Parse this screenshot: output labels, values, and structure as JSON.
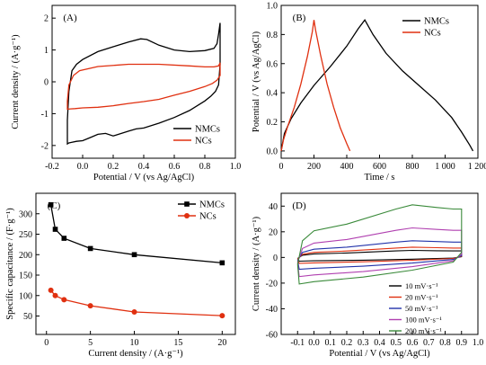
{
  "chart_data": [
    {
      "panel": "(A)",
      "type": "line",
      "xlabel": "Potential / V (vs Ag/AgCl)",
      "ylabel": "Current density / (A·g⁻¹)",
      "xlim": [
        -0.2,
        1.0
      ],
      "ylim": [
        -2.4,
        2.4
      ],
      "xticks": [
        "-0.2",
        "0.0",
        "0.2",
        "0.4",
        "0.6",
        "0.8",
        "1.0"
      ],
      "yticks": [
        "-2",
        "-1",
        "0",
        "1",
        "2"
      ],
      "legend_position": "bottom-right",
      "series": [
        {
          "name": "NMCs",
          "color": "#000000",
          "x": [
            -0.1,
            -0.09,
            -0.07,
            -0.04,
            0.0,
            0.1,
            0.2,
            0.3,
            0.38,
            0.42,
            0.5,
            0.6,
            0.7,
            0.8,
            0.86,
            0.88,
            0.89,
            0.9,
            0.9,
            0.89,
            0.87,
            0.84,
            0.8,
            0.7,
            0.6,
            0.5,
            0.4,
            0.35,
            0.3,
            0.2,
            0.15,
            0.1,
            0.05,
            0.0,
            -0.04,
            -0.07,
            -0.09,
            -0.1,
            -0.1,
            -0.1
          ],
          "y": [
            -1.2,
            -0.3,
            0.35,
            0.55,
            0.7,
            0.95,
            1.1,
            1.25,
            1.35,
            1.33,
            1.15,
            1.0,
            0.95,
            0.98,
            1.05,
            1.2,
            1.5,
            1.85,
            0.55,
            -0.1,
            -0.3,
            -0.45,
            -0.6,
            -0.9,
            -1.12,
            -1.3,
            -1.45,
            -1.48,
            -1.55,
            -1.7,
            -1.62,
            -1.65,
            -1.75,
            -1.85,
            -1.87,
            -1.9,
            -1.92,
            -1.95,
            -1.6,
            -1.2
          ]
        },
        {
          "name": "NCs",
          "color": "#e03010",
          "x": [
            -0.1,
            -0.09,
            -0.06,
            -0.02,
            0.1,
            0.3,
            0.5,
            0.7,
            0.8,
            0.86,
            0.89,
            0.9,
            0.9,
            0.88,
            0.85,
            0.8,
            0.7,
            0.6,
            0.5,
            0.4,
            0.3,
            0.2,
            0.1,
            0.0,
            -0.05,
            -0.08,
            -0.1,
            -0.1
          ],
          "y": [
            -0.6,
            -0.1,
            0.2,
            0.35,
            0.48,
            0.55,
            0.55,
            0.5,
            0.47,
            0.47,
            0.5,
            0.6,
            0.2,
            0.05,
            -0.05,
            -0.15,
            -0.3,
            -0.42,
            -0.55,
            -0.62,
            -0.68,
            -0.75,
            -0.8,
            -0.82,
            -0.84,
            -0.85,
            -0.86,
            -0.6
          ]
        }
      ]
    },
    {
      "panel": "(B)",
      "type": "line",
      "xlabel": "Time / s",
      "ylabel": "Potential / V (vs Ag/AgCl)",
      "xlim": [
        0,
        1200
      ],
      "ylim": [
        -0.05,
        1.0
      ],
      "xticks": [
        "0",
        "200",
        "400",
        "600",
        "800",
        "1 000",
        "1 200"
      ],
      "yticks": [
        "0.0",
        "0.2",
        "0.4",
        "0.6",
        "0.8",
        "1.0"
      ],
      "legend_position": "top-right",
      "series": [
        {
          "name": "NMCs",
          "color": "#000000",
          "x": [
            0,
            20,
            60,
            120,
            200,
            300,
            400,
            470,
            510,
            560,
            640,
            740,
            840,
            940,
            1040,
            1100,
            1150,
            1170
          ],
          "y": [
            0.0,
            0.12,
            0.22,
            0.33,
            0.45,
            0.58,
            0.72,
            0.84,
            0.9,
            0.8,
            0.67,
            0.55,
            0.45,
            0.35,
            0.23,
            0.13,
            0.04,
            0.0
          ]
        },
        {
          "name": "NCs",
          "color": "#e03010",
          "x": [
            0,
            15,
            40,
            80,
            120,
            160,
            190,
            200,
            210,
            240,
            280,
            320,
            360,
            400,
            420
          ],
          "y": [
            0.0,
            0.08,
            0.17,
            0.3,
            0.46,
            0.65,
            0.82,
            0.9,
            0.83,
            0.66,
            0.46,
            0.3,
            0.16,
            0.05,
            0.0
          ]
        }
      ]
    },
    {
      "panel": "(C)",
      "type": "line",
      "xlabel": "Current density / (A·g⁻¹)",
      "ylabel": "Specific capacitance / (F·g⁻¹)",
      "xlim": [
        -1.2,
        21.5
      ],
      "ylim": [
        5,
        350
      ],
      "xticks": [
        "0",
        "5",
        "10",
        "15",
        "20"
      ],
      "yticks": [
        "50",
        "100",
        "150",
        "200",
        "250",
        "300"
      ],
      "legend_position": "top-right",
      "series": [
        {
          "name": "NMCs",
          "color": "#000000",
          "marker": "square",
          "x": [
            0.5,
            1,
            2,
            5,
            10,
            20
          ],
          "y": [
            322,
            262,
            240,
            215,
            200,
            180
          ]
        },
        {
          "name": "NCs",
          "color": "#e03010",
          "marker": "circle",
          "x": [
            0.5,
            1,
            2,
            5,
            10,
            20
          ],
          "y": [
            113,
            100,
            90,
            75,
            60,
            51
          ]
        }
      ]
    },
    {
      "panel": "(D)",
      "type": "line",
      "xlabel": "Potential / V (vs Ag/AgCl)",
      "ylabel": "Current density / (A·g⁻¹)",
      "xlim": [
        -0.2,
        1.0
      ],
      "ylim": [
        -60,
        50
      ],
      "xticks": [
        "-0.1",
        "0.0",
        "0.1",
        "0.2",
        "0.3",
        "0.4",
        "0.5",
        "0.6",
        "0.7",
        "0.8",
        "0.9",
        "1.0"
      ],
      "yticks": [
        "-60",
        "-40",
        "-20",
        "0",
        "20",
        "40"
      ],
      "legend_position": "bottom-right",
      "series": [
        {
          "name": "10 mV·s⁻¹",
          "color": "#000000",
          "peak": 5.5,
          "low": 3.5,
          "pos": 3.0,
          "neg": -2.5
        },
        {
          "name": "20 mV·s⁻¹",
          "color": "#e03010",
          "peak": 8,
          "low": 5,
          "pos": 4.5,
          "neg": -4
        },
        {
          "name": "50 mV·s⁻¹",
          "color": "#2233aa",
          "peak": 13,
          "low": 8,
          "pos": 7,
          "neg": -8
        },
        {
          "name": "100 mV·s⁻¹",
          "color": "#b040b0",
          "peak": 23,
          "low": 14,
          "pos": 12,
          "neg": -13
        },
        {
          "name": "200 mV·s⁻¹",
          "color": "#3a8a3a",
          "peak": 41,
          "low": 26,
          "pos": 20,
          "neg": -18
        }
      ]
    }
  ]
}
